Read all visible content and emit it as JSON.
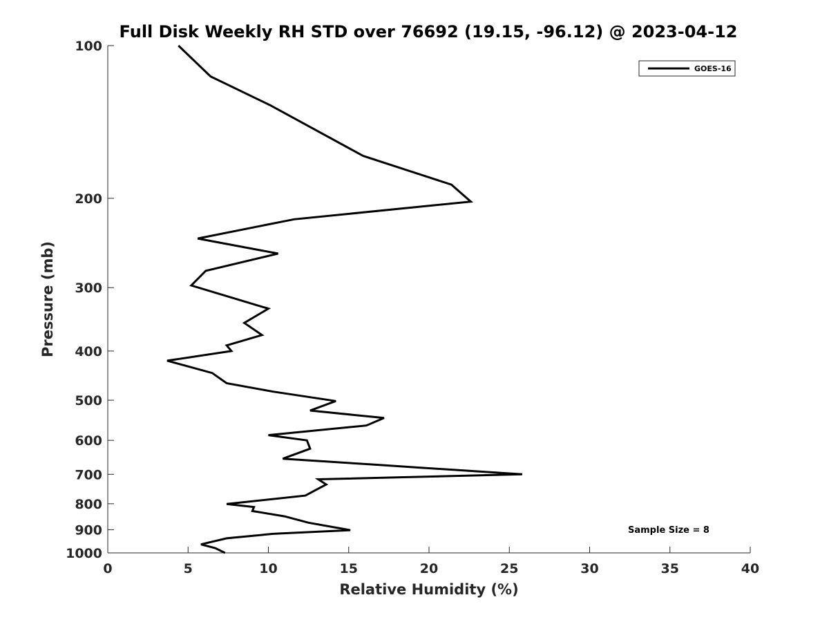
{
  "chart_data": {
    "type": "line",
    "title": "Full Disk Weekly RH STD over 76692 (19.15, -96.12) @ 2023-04-12",
    "xlabel": "Relative Humidity (%)",
    "ylabel": "Pressure (mb)",
    "xlim": [
      0,
      40
    ],
    "ylim": [
      100,
      1000
    ],
    "y_scale": "log",
    "y_inverted": true,
    "grid": false,
    "legend_position": "top-right",
    "x_ticks": [
      "0",
      "5",
      "10",
      "15",
      "20",
      "25",
      "30",
      "35",
      "40"
    ],
    "y_ticks": [
      "100",
      "200",
      "300",
      "400",
      "500",
      "600",
      "700",
      "800",
      "900",
      "1000"
    ],
    "annotation": "Sample Size = 8",
    "series": [
      {
        "name": "GOES-16",
        "color": "#000000",
        "x": [
          4.4,
          6.4,
          10.1,
          15.9,
          21.4,
          22.6,
          11.6,
          5.6,
          10.6,
          6.1,
          5.2,
          10.0,
          8.5,
          9.6,
          7.4,
          7.7,
          3.7,
          6.5,
          7.4,
          10.3,
          14.2,
          12.6,
          17.2,
          16.1,
          10.0,
          12.4,
          12.6,
          10.9,
          16.6,
          19.4,
          25.8,
          13.1,
          13.6,
          12.3,
          7.4,
          9.1,
          9.0,
          11.0,
          12.5,
          15.1,
          10.3,
          7.4,
          5.8,
          6.7,
          7.3
        ],
        "y": [
          100,
          115,
          131,
          165,
          188,
          203,
          220,
          240,
          257,
          278,
          297,
          330,
          352,
          372,
          390,
          400,
          418,
          442,
          463,
          481,
          502,
          524,
          542,
          561,
          586,
          600,
          623,
          652,
          670,
          679,
          700,
          716,
          733,
          771,
          801,
          812,
          827,
          847,
          872,
          902,
          917,
          936,
          962,
          979,
          1000
        ]
      }
    ]
  }
}
